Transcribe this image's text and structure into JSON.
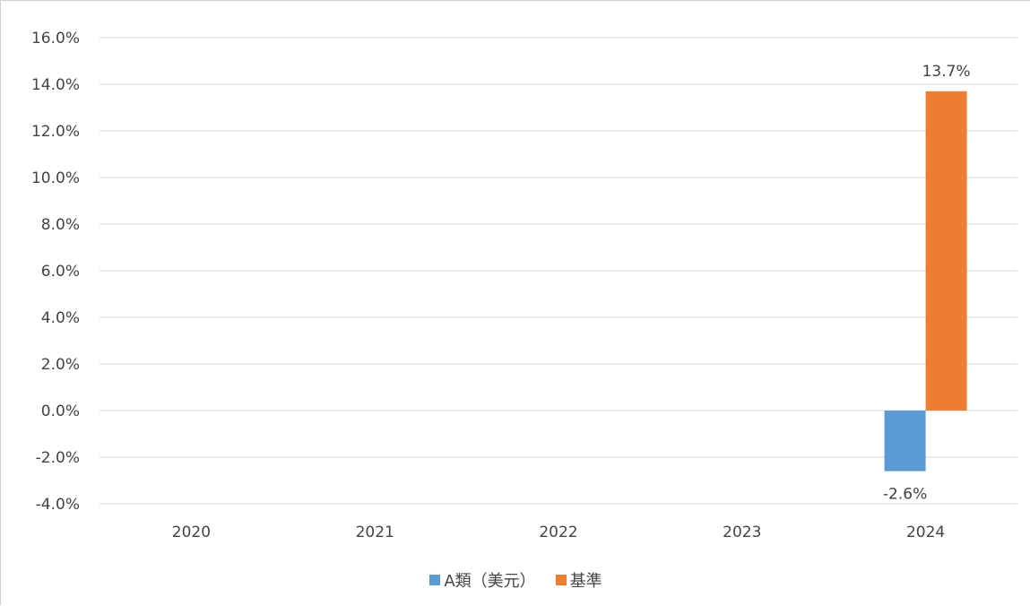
{
  "chart_data": {
    "type": "bar",
    "categories": [
      "2020",
      "2021",
      "2022",
      "2023",
      "2024"
    ],
    "series": [
      {
        "name": "A類（美元）",
        "values": [
          null,
          null,
          null,
          null,
          -2.6
        ],
        "color": "#5B9BD5"
      },
      {
        "name": "基準",
        "values": [
          null,
          null,
          null,
          null,
          13.7
        ],
        "color": "#ED7D31"
      }
    ],
    "data_labels": [
      {
        "series": 0,
        "category": "2024",
        "text": "-2.6%"
      },
      {
        "series": 1,
        "category": "2024",
        "text": "13.7%"
      }
    ],
    "y_ticks": [
      "-4.0%",
      "-2.0%",
      "0.0%",
      "2.0%",
      "4.0%",
      "6.0%",
      "8.0%",
      "10.0%",
      "12.0%",
      "14.0%",
      "16.0%"
    ],
    "ylim": [
      -4,
      16
    ],
    "y_unit": "%",
    "grid": true,
    "legend_position": "bottom",
    "title": "",
    "xlabel": "",
    "ylabel": ""
  }
}
